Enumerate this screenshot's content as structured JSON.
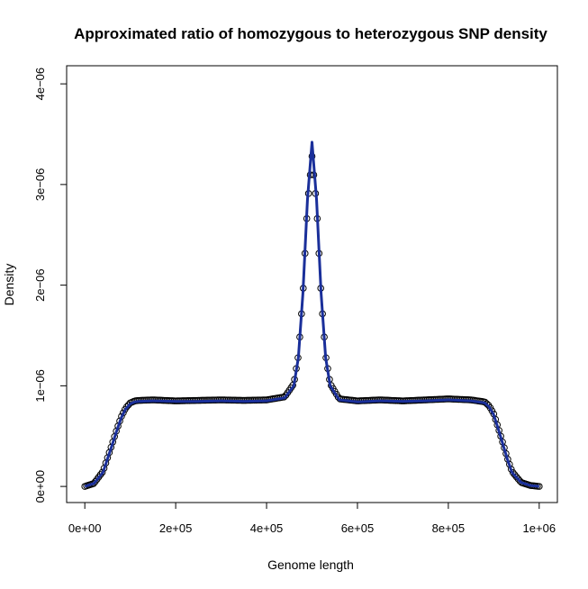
{
  "chart_data": {
    "type": "line",
    "title": "Approximated ratio of homozygous to heterozygous SNP density",
    "xlabel": "Genome length",
    "ylabel": "Density",
    "xlim": [
      -40000,
      1040000
    ],
    "ylim": [
      -1.6e-07,
      4.18e-06
    ],
    "x_ticks": [
      0,
      200000,
      400000,
      600000,
      800000,
      1000000
    ],
    "x_tick_labels": [
      "0e+00",
      "2e+05",
      "4e+05",
      "6e+05",
      "8e+05",
      "1e+06"
    ],
    "y_ticks": [
      0,
      1e-06,
      2e-06,
      3e-06,
      4e-06
    ],
    "y_tick_labels": [
      "0e+00",
      "1e−06",
      "2e−06",
      "3e−06",
      "4e−06"
    ],
    "grid": false,
    "colors": {
      "points": "#000000",
      "fit_line": "#1a2f9a"
    },
    "series": [
      {
        "style": "points",
        "x": [
          0,
          20000,
          40000,
          60000,
          70000,
          80000,
          90000,
          100000,
          110000,
          120000,
          150000,
          200000,
          250000,
          300000,
          350000,
          400000,
          440000,
          460000,
          470000,
          480000,
          490000,
          500000,
          510000,
          520000,
          530000,
          540000,
          560000,
          600000,
          650000,
          700000,
          750000,
          800000,
          850000,
          880000,
          890000,
          900000,
          910000,
          920000,
          930000,
          940000,
          960000,
          980000,
          1000000
        ],
        "y": [
          0.0,
          3e-08,
          1.5e-07,
          4.2e-07,
          5.6e-07,
          6.9e-07,
          7.8e-07,
          8.3e-07,
          8.5e-07,
          8.55e-07,
          8.6e-07,
          8.5e-07,
          8.55e-07,
          8.6e-07,
          8.55e-07,
          8.6e-07,
          8.9e-07,
          1.02e-06,
          1.3e-06,
          1.9e-06,
          2.8e-06,
          3.28e-06,
          2.8e-06,
          1.9e-06,
          1.3e-06,
          1.02e-06,
          8.7e-07,
          8.5e-07,
          8.6e-07,
          8.5e-07,
          8.6e-07,
          8.7e-07,
          8.6e-07,
          8.4e-07,
          8e-07,
          7.2e-07,
          5.8e-07,
          4.3e-07,
          2.8e-07,
          1.5e-07,
          4e-08,
          1e-08,
          0.0
        ]
      },
      {
        "style": "line",
        "x": [
          0,
          20000,
          40000,
          60000,
          70000,
          80000,
          90000,
          100000,
          110000,
          120000,
          150000,
          200000,
          250000,
          300000,
          350000,
          400000,
          440000,
          460000,
          470000,
          480000,
          490000,
          500000,
          510000,
          520000,
          530000,
          540000,
          560000,
          600000,
          650000,
          700000,
          750000,
          800000,
          850000,
          880000,
          890000,
          900000,
          910000,
          920000,
          930000,
          940000,
          960000,
          980000,
          1000000
        ],
        "y": [
          0.0,
          3e-08,
          1.4e-07,
          4.1e-07,
          5.5e-07,
          6.8e-07,
          7.7e-07,
          8.2e-07,
          8.4e-07,
          8.45e-07,
          8.5e-07,
          8.45e-07,
          8.45e-07,
          8.5e-07,
          8.45e-07,
          8.5e-07,
          8.8e-07,
          1e-06,
          1.28e-06,
          1.92e-06,
          2.85e-06,
          3.42e-06,
          2.85e-06,
          1.92e-06,
          1.28e-06,
          1e-06,
          8.6e-07,
          8.4e-07,
          8.5e-07,
          8.45e-07,
          8.5e-07,
          8.6e-07,
          8.5e-07,
          8.3e-07,
          7.9e-07,
          7.1e-07,
          5.7e-07,
          4.2e-07,
          2.7e-07,
          1.4e-07,
          4e-08,
          1e-08,
          0.0
        ]
      }
    ]
  }
}
